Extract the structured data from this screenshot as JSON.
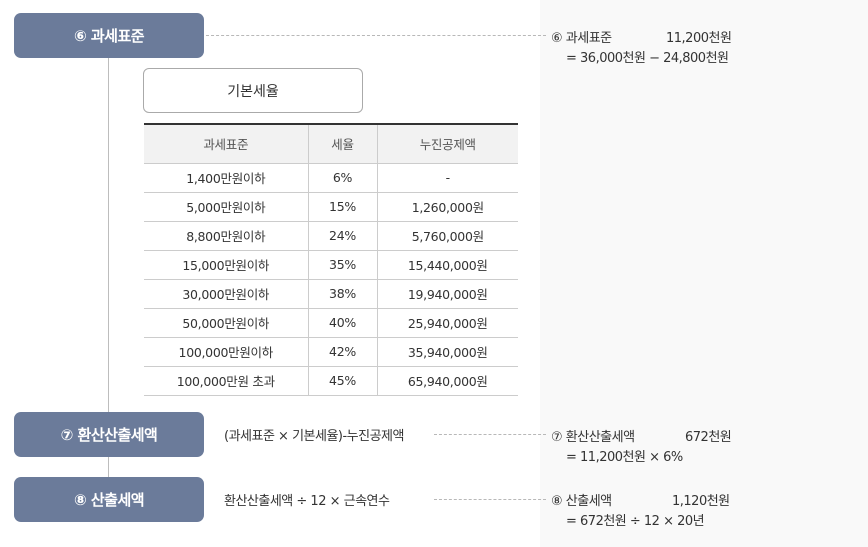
{
  "steps": {
    "s6": {
      "label": "⑥ 과세표준"
    },
    "s7": {
      "label": "⑦ 환산산출세액",
      "formula": "(과세표준 × 기본세율)-누진공제액"
    },
    "s8": {
      "label": "⑧ 산출세액",
      "formula": "환산산출세액 ÷ 12 × 근속연수"
    }
  },
  "base_rate_title": "기본세율",
  "table": {
    "headers": [
      "과세표준",
      "세율",
      "누진공제액"
    ],
    "rows": [
      [
        "1,400만원이하",
        "6%",
        "-"
      ],
      [
        "5,000만원이하",
        "15%",
        "1,260,000원"
      ],
      [
        "8,800만원이하",
        "24%",
        "5,760,000원"
      ],
      [
        "15,000만원이하",
        "35%",
        "15,440,000원"
      ],
      [
        "30,000만원이하",
        "38%",
        "19,940,000원"
      ],
      [
        "50,000만원이하",
        "40%",
        "25,940,000원"
      ],
      [
        "100,000만원이하",
        "42%",
        "35,940,000원"
      ],
      [
        "100,000만원 초과",
        "45%",
        "65,940,000원"
      ]
    ]
  },
  "results": {
    "r6": {
      "label": "⑥ 과세표준",
      "value": "11,200천원",
      "calc": "= 36,000천원 − 24,800천원"
    },
    "r7": {
      "label": "⑦ 환산산출세액",
      "value": "672천원",
      "calc": "= 11,200천원 × 6%"
    },
    "r8": {
      "label": "⑧ 산출세액",
      "value": "1,120천원",
      "calc": "= 672천원 ÷ 12 × 20년"
    }
  },
  "colors": {
    "pill": "#6b7b9a",
    "panel": "#f9f9f9"
  }
}
